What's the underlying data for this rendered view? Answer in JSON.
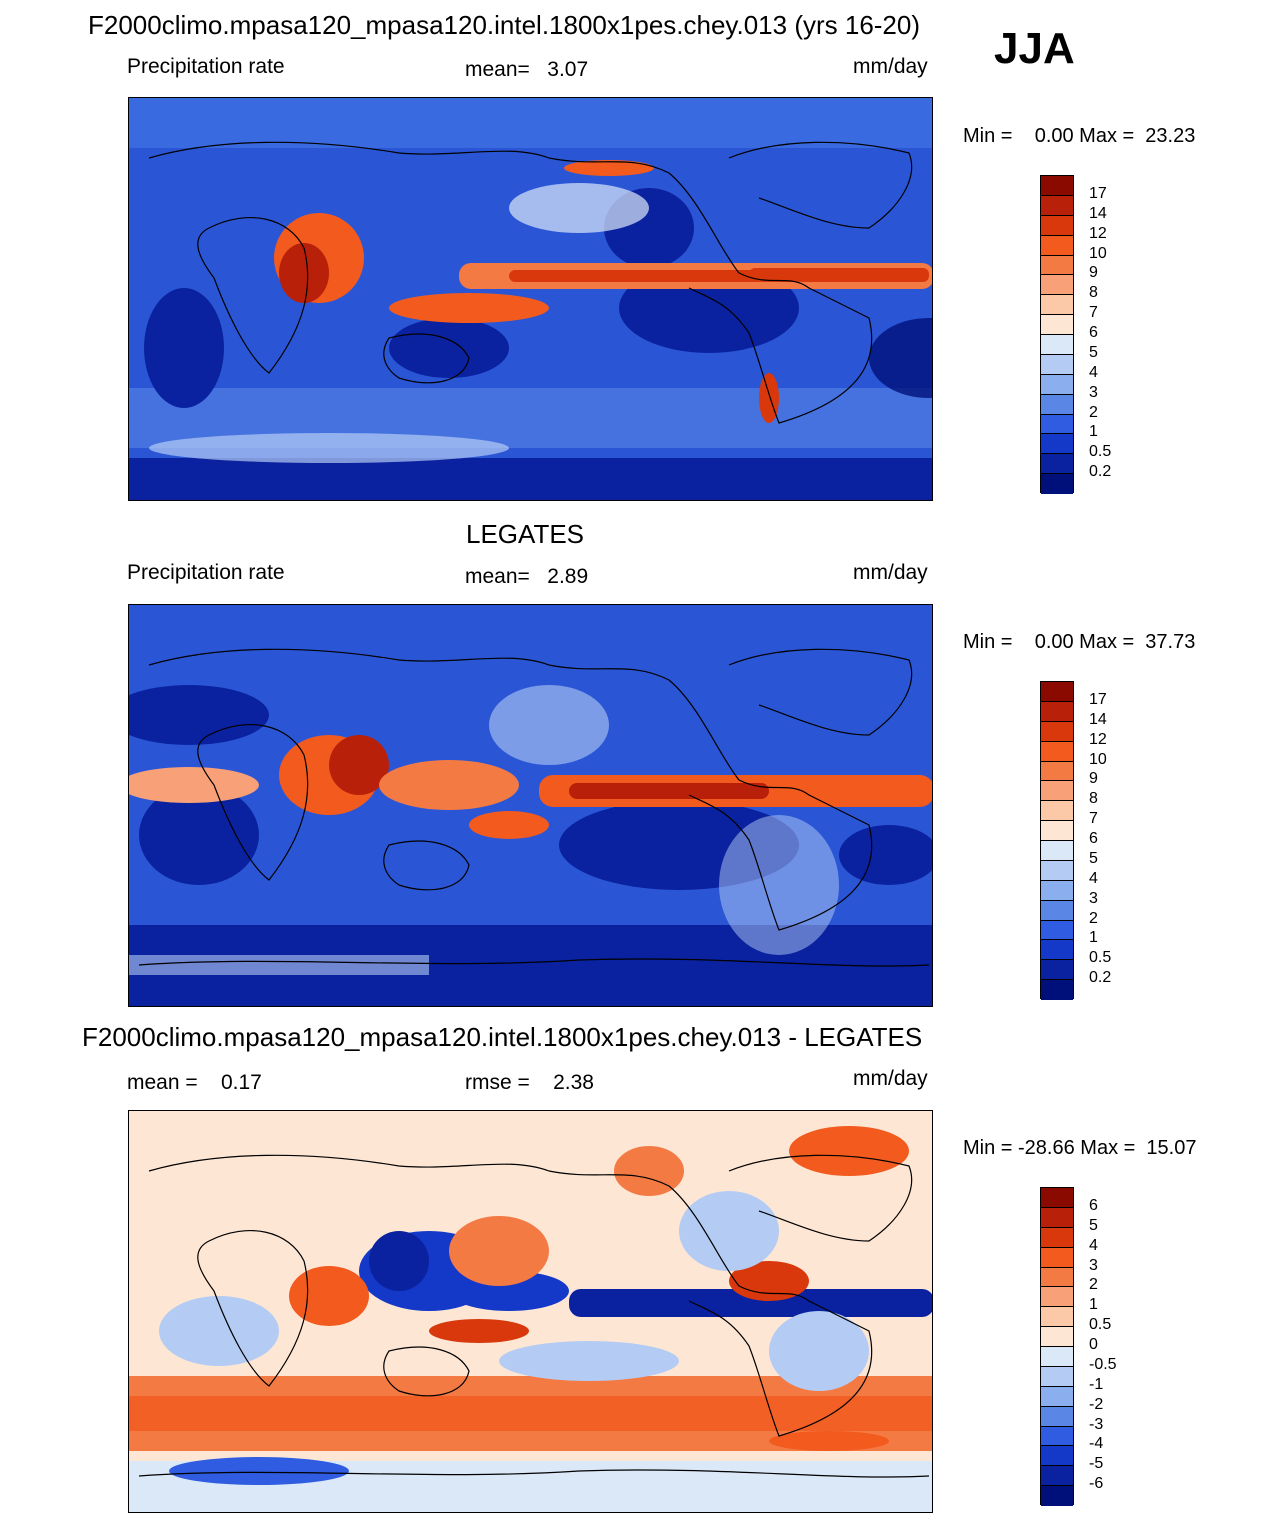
{
  "header": {
    "title": "F2000climo.mpasa120_mpasa120.intel.1800x1pes.chey.013 (yrs 16-20)",
    "season": "JJA"
  },
  "panels": [
    {
      "title": "",
      "left_label": "Precipitation rate",
      "center_label": "mean=   3.07",
      "units": "mm/day",
      "minmax": "Min =    0.00 Max =  23.23",
      "colorbar": {
        "labels": [
          "17",
          "14",
          "12",
          "10",
          "9",
          "8",
          "7",
          "6",
          "5",
          "4",
          "3",
          "2",
          "1",
          "0.5",
          "0.2"
        ],
        "colors": [
          "#8a0a00",
          "#b8200a",
          "#d8380c",
          "#f25a1e",
          "#f47a44",
          "#f8a078",
          "#fbc8a8",
          "#fde6d4",
          "#dbe8f8",
          "#b4ccf4",
          "#8aaeee",
          "#5a86e6",
          "#2f5ce0",
          "#1438c8",
          "#0a22a0",
          "#00107a"
        ]
      }
    },
    {
      "title": "LEGATES",
      "left_label": "Precipitation rate",
      "center_label": "mean=   2.89",
      "units": "mm/day",
      "minmax": "Min =    0.00 Max =  37.73",
      "colorbar": {
        "labels": [
          "17",
          "14",
          "12",
          "10",
          "9",
          "8",
          "7",
          "6",
          "5",
          "4",
          "3",
          "2",
          "1",
          "0.5",
          "0.2"
        ],
        "colors": [
          "#8a0a00",
          "#b8200a",
          "#d8380c",
          "#f25a1e",
          "#f47a44",
          "#f8a078",
          "#fbc8a8",
          "#fde6d4",
          "#dbe8f8",
          "#b4ccf4",
          "#8aaeee",
          "#5a86e6",
          "#2f5ce0",
          "#1438c8",
          "#0a22a0",
          "#00107a"
        ]
      }
    },
    {
      "title": "F2000climo.mpasa120_mpasa120.intel.1800x1pes.chey.013 - LEGATES",
      "left_label": "mean =    0.17",
      "center_label": "rmse =    2.38",
      "units": "mm/day",
      "minmax": "Min = -28.66 Max =  15.07",
      "colorbar": {
        "labels": [
          "6",
          "5",
          "4",
          "3",
          "2",
          "1",
          "0.5",
          "0",
          "-0.5",
          "-1",
          "-2",
          "-3",
          "-4",
          "-5",
          "-6"
        ],
        "colors": [
          "#8a0a00",
          "#b8200a",
          "#d8380c",
          "#f25a1e",
          "#f47a44",
          "#f8a078",
          "#fbc8a8",
          "#fde6d4",
          "#dbe8f8",
          "#b4ccf4",
          "#8aaeee",
          "#5a86e6",
          "#2f5ce0",
          "#1438c8",
          "#0a22a0",
          "#00107a"
        ]
      }
    }
  ]
}
